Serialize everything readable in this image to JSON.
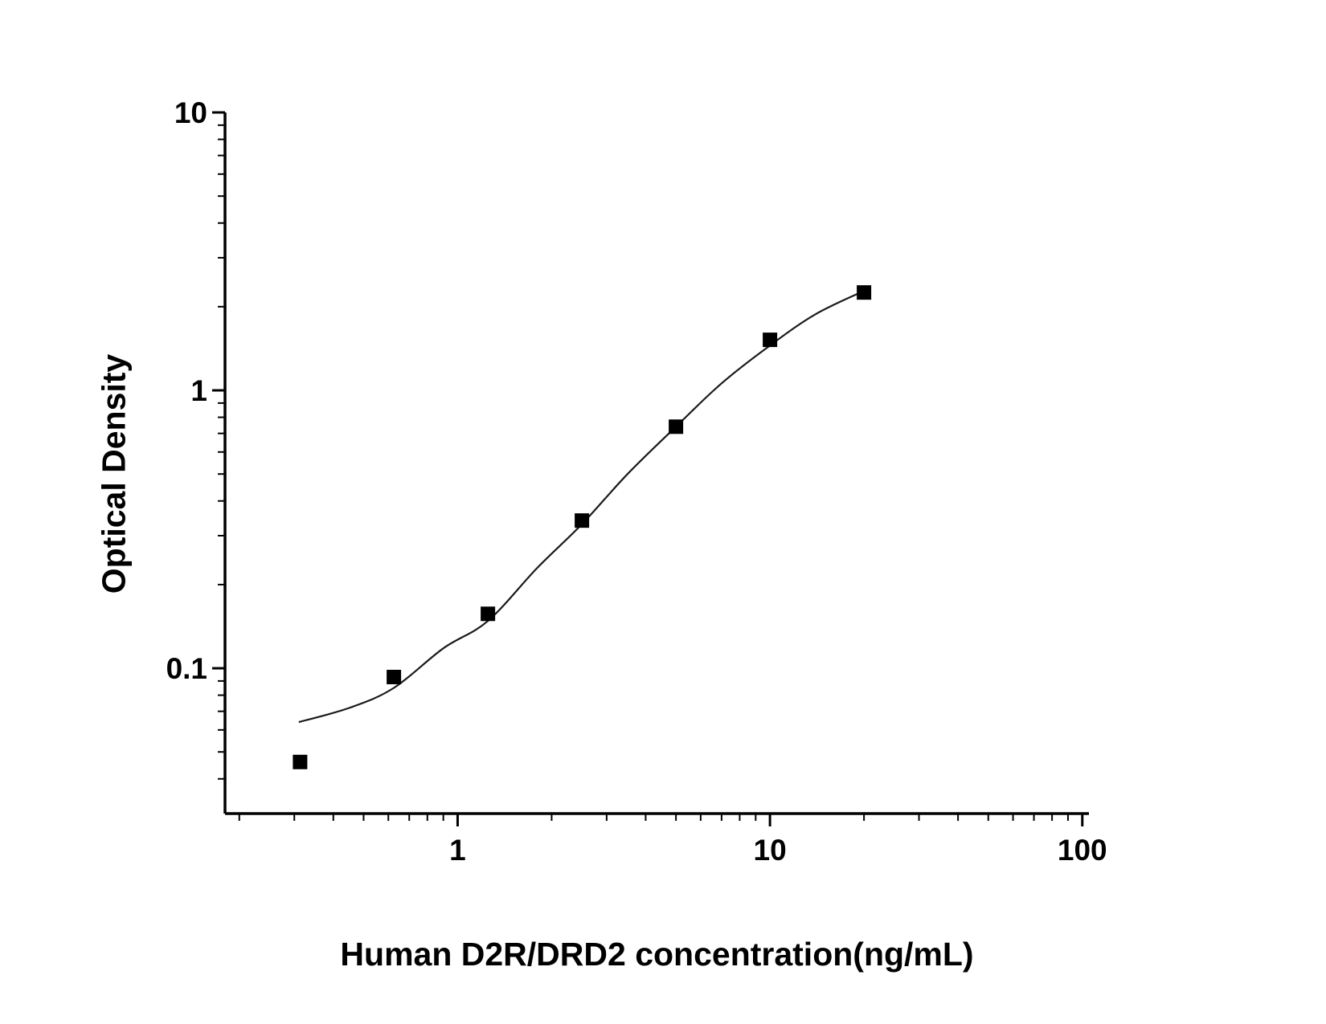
{
  "chart_data": {
    "type": "scatter",
    "title": "",
    "xlabel": "Human D2R/DRD2 concentration(ng/mL)",
    "ylabel": "Optical Density",
    "x_scale": "log",
    "y_scale": "log",
    "xlim": [
      0.18,
      105
    ],
    "ylim": [
      0.03,
      10
    ],
    "grid": false,
    "legend": null,
    "x_ticks": [
      {
        "value": 1,
        "label": "1"
      },
      {
        "value": 10,
        "label": "10"
      },
      {
        "value": 100,
        "label": "100"
      }
    ],
    "y_ticks": [
      {
        "value": 0.1,
        "label": "0.1"
      },
      {
        "value": 1,
        "label": "1"
      },
      {
        "value": 10,
        "label": "10"
      }
    ],
    "series": [
      {
        "name": "standard-points",
        "type": "scatter",
        "marker": "square",
        "marker_size": 18,
        "color": "#000000",
        "x": [
          0.313,
          0.625,
          1.25,
          2.5,
          5,
          10,
          20
        ],
        "y": [
          0.046,
          0.093,
          0.157,
          0.34,
          0.74,
          1.52,
          2.25
        ]
      },
      {
        "name": "4pl-fit-curve",
        "type": "line",
        "color": "#1a1a1a",
        "stroke_width": 2.2,
        "x": [
          0.31,
          0.45,
          0.625,
          0.9,
          1.25,
          1.8,
          2.5,
          3.5,
          5,
          7,
          10,
          14,
          20
        ],
        "y": [
          0.064,
          0.072,
          0.085,
          0.118,
          0.148,
          0.23,
          0.33,
          0.5,
          0.74,
          1.06,
          1.45,
          1.88,
          2.28
        ]
      }
    ]
  },
  "figure": {
    "background": "#ffffff",
    "axis_color": "#000000"
  }
}
